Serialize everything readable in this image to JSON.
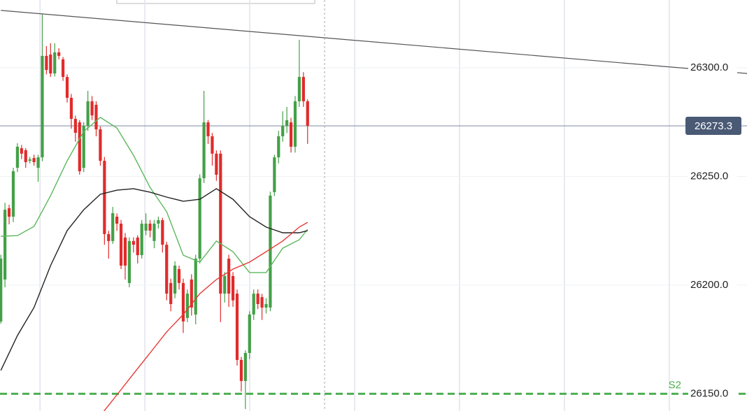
{
  "chart_data": {
    "type": "candlestick",
    "up_color": "#43a047",
    "down_color": "#e02b2b",
    "xlim": [
      -0.2,
      180
    ],
    "ylim": [
      26142.1,
      26331.2
    ],
    "xticks": [
      9.45,
      34.75,
      60.05,
      85.35,
      110.65,
      135.95,
      161.25
    ],
    "yticks": [
      {
        "value": 26150,
        "label": "26150.0"
      },
      {
        "value": 26200,
        "label": "26200.0"
      },
      {
        "value": 26250,
        "label": "26250.0"
      },
      {
        "value": 26300,
        "label": "26300.0"
      }
    ],
    "grid": true,
    "cursor_x": 78.1,
    "ohlc": [
      [
        26183.3,
        26214,
        26182.3,
        26212.2
      ],
      [
        26202.6,
        26237.9,
        26199,
        26234.7
      ],
      [
        26235.4,
        26237,
        26228,
        26231.5
      ],
      [
        26231.5,
        26254,
        26229,
        26252.4
      ],
      [
        26254.0,
        26265.3,
        26252,
        26263.7
      ],
      [
        26263.0,
        26264.5,
        26258,
        26260.5
      ],
      [
        26262.1,
        26263,
        26254,
        26256.6
      ],
      [
        26257.2,
        26259,
        26256,
        26257.9
      ],
      [
        26258.5,
        26260,
        26255,
        26256.6
      ],
      [
        26254.0,
        26260,
        26247.6,
        26258.8
      ],
      [
        26258.8,
        26324.8,
        26257,
        26305.5
      ],
      [
        26305.5,
        26310,
        26297,
        26299.0
      ],
      [
        26306.1,
        26311.3,
        26295.8,
        26297.4
      ],
      [
        26297.4,
        26311.3,
        26296,
        26307.1
      ],
      [
        26307.1,
        26309,
        26303.9,
        26305.5
      ],
      [
        26303.9,
        26305,
        26294,
        26295.8
      ],
      [
        26295.8,
        26297,
        26284,
        26286.2
      ],
      [
        26286.2,
        26288,
        26272,
        26276.5
      ],
      [
        26276.5,
        26278,
        26266,
        26270.1
      ],
      [
        26274.9,
        26276,
        26250.8,
        26252.4
      ],
      [
        26254.0,
        26275,
        26252,
        26273.3
      ],
      [
        26273.3,
        26289.4,
        26271,
        26284.6
      ],
      [
        26284.6,
        26287,
        26276,
        26278.1
      ],
      [
        26283.0,
        26284.6,
        26268.5,
        26271.7
      ],
      [
        26271.7,
        26273,
        26255,
        26257.2
      ],
      [
        26257.2,
        26259,
        26218.6,
        26223.5
      ],
      [
        26223.5,
        26225,
        26212.2,
        26220.3
      ],
      [
        26220.3,
        26236,
        26219,
        26233.1
      ],
      [
        26231.5,
        26233,
        26225,
        26228.3
      ],
      [
        26228.3,
        26230,
        26207.4,
        26209.0
      ],
      [
        26221.9,
        26224,
        26202.6,
        26209.0
      ],
      [
        26201.0,
        26222,
        26199.0,
        26220.3
      ],
      [
        26220.3,
        26222,
        26215,
        26218.6
      ],
      [
        26221.9,
        26223,
        26210,
        26213.8
      ],
      [
        26213.8,
        26230,
        26212.2,
        26228.3
      ],
      [
        26225.1,
        26233,
        26223,
        26228.3
      ],
      [
        26228.3,
        26230,
        26222,
        26225.1
      ],
      [
        26220.3,
        26230,
        26217,
        26228.3
      ],
      [
        26228.3,
        26231.5,
        26226,
        26229.9
      ],
      [
        26229.9,
        26231,
        26215,
        26218.6
      ],
      [
        26218.6,
        26220,
        26193,
        26196.1
      ],
      [
        26201.0,
        26203,
        26188,
        26191.3
      ],
      [
        26196.1,
        26211,
        26194,
        26209.0
      ],
      [
        26207.4,
        26209,
        26198,
        26201.0
      ],
      [
        26201.0,
        26203,
        26178,
        26183.3
      ],
      [
        26184.9,
        26198,
        26183,
        26196.1
      ],
      [
        26202.6,
        26205,
        26186,
        26189.7
      ],
      [
        26186.5,
        26214,
        26182,
        26212.2
      ],
      [
        26212.2,
        26251,
        26210,
        26249.2
      ],
      [
        26249.2,
        26289.4,
        26247,
        26274.9
      ],
      [
        26274.9,
        26276,
        26265,
        26268.5
      ],
      [
        26268.5,
        26270,
        26255,
        26260.5
      ],
      [
        26260.5,
        26262,
        26248,
        26250.8
      ],
      [
        26260.5,
        26262,
        26183,
        26196.1
      ],
      [
        26196.1,
        26206,
        26192,
        26204.2
      ],
      [
        26212.2,
        26214,
        26190,
        26196.1
      ],
      [
        26204.2,
        26206,
        26190,
        26193
      ],
      [
        26196.1,
        26198,
        26163,
        26165.6
      ],
      [
        26165.6,
        26167,
        26151.1,
        26155.9
      ],
      [
        26155.9,
        26170,
        26143,
        26168.8
      ],
      [
        26168.8,
        26188,
        26166,
        26186.5
      ],
      [
        26186.5,
        26198,
        26184,
        26196.1
      ],
      [
        26196.1,
        26198,
        26189,
        26191.3
      ],
      [
        26194.5,
        26196,
        26184,
        26189.7
      ],
      [
        26189.7,
        26194,
        26187,
        26191.3
      ],
      [
        26189.7,
        26243,
        26188,
        26241.2
      ],
      [
        26242.8,
        26260,
        26241,
        26258.8
      ],
      [
        26258.8,
        26271,
        26256,
        26268.5
      ],
      [
        26268.5,
        26280,
        26266,
        26273.3
      ],
      [
        26273.3,
        26282,
        26270,
        26275.9
      ],
      [
        26274.9,
        26277,
        26261,
        26263.7
      ],
      [
        26263.7,
        26287,
        26261,
        26284.6
      ],
      [
        26284.6,
        26312.9,
        26282,
        26295.8
      ],
      [
        26295.8,
        26298,
        26282,
        26284.6
      ],
      [
        26284.6,
        26285.5,
        26265,
        26273.3
      ]
    ],
    "lines": [
      {
        "color": "#555555",
        "x": [
          0,
          180
        ],
        "values": [
          26326.4,
          26297.4
        ]
      },
      {
        "color": "#5cb85c",
        "x": [
          0,
          4,
          8,
          12,
          16,
          20,
          24,
          28,
          32,
          36,
          40,
          44,
          48,
          52,
          56,
          60,
          64,
          68,
          72,
          74
        ],
        "values": [
          26222.5,
          26222.8,
          26227.0,
          26241.2,
          26257.2,
          26270.7,
          26277.2,
          26272.3,
          26259.8,
          26245.0,
          26233.8,
          26213.8,
          26210.6,
          26220.3,
          26215.4,
          26205.8,
          26205.8,
          26217.0,
          26220.9,
          26225.7
        ]
      },
      {
        "color": "#222222",
        "x": [
          0,
          4,
          8,
          12,
          16,
          20,
          24,
          28,
          32,
          36,
          40,
          44,
          48,
          52,
          56,
          60,
          64,
          68,
          72,
          74
        ],
        "values": [
          26160.8,
          26176.8,
          26189.7,
          26209.0,
          26225.1,
          26234.7,
          26241.8,
          26243.7,
          26244.4,
          26242.8,
          26240.5,
          26238.6,
          26239.5,
          26244.4,
          26239.5,
          26231.5,
          26226.7,
          26224.1,
          26224.1,
          26225.1
        ]
      },
      {
        "color": "#e53935",
        "x": [
          24,
          28,
          32,
          36,
          40,
          44,
          48,
          52,
          56,
          60,
          64,
          68,
          72,
          74
        ],
        "values": [
          26139.9,
          26149.5,
          26159.2,
          26168.8,
          26178.5,
          26186.5,
          26196.1,
          26202.6,
          26207.4,
          26210.6,
          26215.4,
          26220.3,
          26226.7,
          26228.9
        ]
      }
    ],
    "price_line": {
      "value": 26273.3,
      "label": "26273.3"
    },
    "levels": [
      {
        "value": 26150,
        "label": "S2",
        "color": "#4caf50"
      }
    ]
  }
}
